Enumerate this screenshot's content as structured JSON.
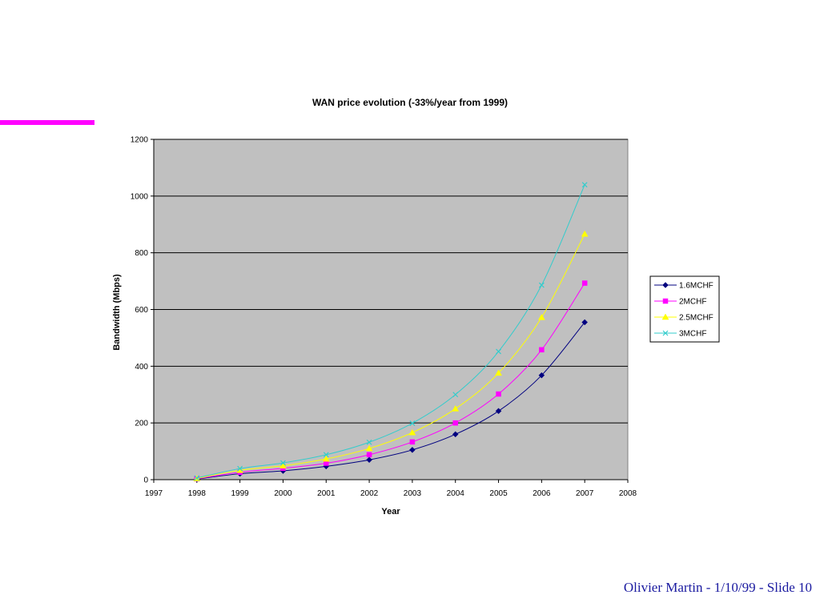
{
  "slide": {
    "footer": "Olivier Martin - 1/10/99 - Slide 10",
    "accent_color": "#ff00ff",
    "footer_color": "#1a1aa0"
  },
  "chart_data": {
    "type": "line",
    "title": "WAN price evolution (-33%/year from 1999)",
    "xlabel": "Year",
    "ylabel": "Bandwidth (Mbps)",
    "xlim": [
      1997,
      2008
    ],
    "ylim": [
      0,
      1200
    ],
    "x_ticks": [
      1997,
      1998,
      1999,
      2000,
      2001,
      2002,
      2003,
      2004,
      2005,
      2006,
      2007,
      2008
    ],
    "y_ticks": [
      0,
      200,
      400,
      600,
      800,
      1000,
      1200
    ],
    "grid": "horizontal",
    "plot_background": "#c0c0c0",
    "legend_position": "right",
    "x": [
      1998,
      1999,
      2000,
      2001,
      2002,
      2003,
      2004,
      2005,
      2006,
      2007
    ],
    "series": [
      {
        "name": "1.6MCHF",
        "color": "#000080",
        "marker": "diamond",
        "values": [
          2,
          21,
          31,
          47,
          70,
          105,
          160,
          242,
          368,
          555
        ]
      },
      {
        "name": "2MCHF",
        "color": "#ff00ff",
        "marker": "square",
        "values": [
          3,
          26,
          40,
          58,
          88,
          133,
          200,
          302,
          458,
          693
        ]
      },
      {
        "name": "2.5MCHF",
        "color": "#ffff00",
        "marker": "triangle",
        "values": [
          4,
          33,
          49,
          73,
          110,
          166,
          250,
          376,
          572,
          866
        ]
      },
      {
        "name": "3MCHF",
        "color": "#33cccc",
        "marker": "x",
        "values": [
          6,
          39,
          59,
          88,
          132,
          199,
          300,
          452,
          686,
          1040
        ]
      }
    ]
  }
}
